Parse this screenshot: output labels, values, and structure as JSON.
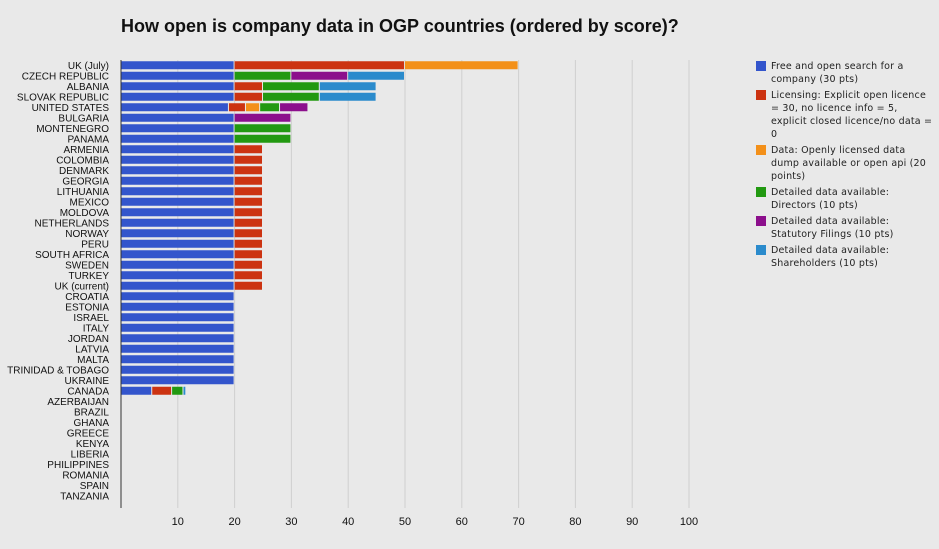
{
  "chart_data": {
    "type": "bar",
    "orientation": "horizontal",
    "stacked": true,
    "title": "How open is company data in OGP countries (ordered by score)?",
    "xlabel": "",
    "ylabel": "",
    "xlim": [
      0,
      100
    ],
    "xticks": [
      "10",
      "20",
      "30",
      "40",
      "50",
      "60",
      "70",
      "80",
      "90",
      "100"
    ],
    "grid": true,
    "legend_position": "right",
    "categories": [
      "UK (July)",
      "CZECH REPUBLIC",
      "ALBANIA",
      "SLOVAK REPUBLIC",
      "UNITED STATES",
      "BULGARIA",
      "MONTENEGRO",
      "PANAMA",
      "ARMENIA",
      "COLOMBIA",
      "DENMARK",
      "GEORGIA",
      "LITHUANIA",
      "MEXICO",
      "MOLDOVA",
      "NETHERLANDS",
      "NORWAY",
      "PERU",
      "SOUTH AFRICA",
      "SWEDEN",
      "TURKEY",
      "UK (current)",
      "CROATIA",
      "ESTONIA",
      "ISRAEL",
      "ITALY",
      "JORDAN",
      "LATVIA",
      "MALTA",
      "TRINIDAD & TOBAGO",
      "UKRAINE",
      "CANADA",
      "AZERBAIJAN",
      "BRAZIL",
      "GHANA",
      "GREECE",
      "KENYA",
      "LIBERIA",
      "PHILIPPINES",
      "ROMANIA",
      "SPAIN",
      "TANZANIA"
    ],
    "series": [
      {
        "name": "Free and open search for a company (30 pts)",
        "color": "#3355cc",
        "values": [
          20,
          20,
          20,
          20,
          19,
          20,
          20,
          20,
          20,
          20,
          20,
          20,
          20,
          20,
          20,
          20,
          20,
          20,
          20,
          20,
          20,
          20,
          20,
          20,
          20,
          20,
          20,
          20,
          20,
          20,
          20,
          5.5,
          0,
          0,
          0,
          0,
          0,
          0,
          0,
          0,
          0,
          0
        ]
      },
      {
        "name": "Licensing: Explicit open licence = 30, no licence info = 5, explicit closed licence/no data = 0",
        "color": "#cc3311",
        "values": [
          30,
          0,
          5,
          5,
          3,
          0,
          0,
          0,
          5,
          5,
          5,
          5,
          5,
          5,
          5,
          5,
          5,
          5,
          5,
          5,
          5,
          5,
          0,
          0,
          0,
          0,
          0,
          0,
          0,
          0,
          0,
          3.5,
          0,
          0,
          0,
          0,
          0,
          0,
          0,
          0,
          0,
          0
        ]
      },
      {
        "name": "Data: Openly licensed data dump available or open api (20 points)",
        "color": "#f39019",
        "values": [
          20,
          0,
          0,
          0,
          2.5,
          0,
          0,
          0,
          0,
          0,
          0,
          0,
          0,
          0,
          0,
          0,
          0,
          0,
          0,
          0,
          0,
          0,
          0,
          0,
          0,
          0,
          0,
          0,
          0,
          0,
          0,
          0,
          0,
          0,
          0,
          0,
          0,
          0,
          0,
          0,
          0,
          0
        ]
      },
      {
        "name": "Detailed data available: Directors (10 pts)",
        "color": "#229911",
        "values": [
          0,
          10,
          10,
          10,
          3.5,
          0,
          10,
          10,
          0,
          0,
          0,
          0,
          0,
          0,
          0,
          0,
          0,
          0,
          0,
          0,
          0,
          0,
          0,
          0,
          0,
          0,
          0,
          0,
          0,
          0,
          0,
          2,
          0,
          0,
          0,
          0,
          0,
          0,
          0,
          0,
          0,
          0
        ]
      },
      {
        "name": "Detailed data available: Statutory Filings (10 pts)",
        "color": "#8c0f8c",
        "values": [
          0,
          10,
          0,
          0,
          5,
          10,
          0,
          0,
          0,
          0,
          0,
          0,
          0,
          0,
          0,
          0,
          0,
          0,
          0,
          0,
          0,
          0,
          0,
          0,
          0,
          0,
          0,
          0,
          0,
          0,
          0,
          0,
          0,
          0,
          0,
          0,
          0,
          0,
          0,
          0,
          0,
          0
        ]
      },
      {
        "name": "Detailed data available: Shareholders (10 pts)",
        "color": "#2b8bcc",
        "values": [
          0,
          10,
          10,
          10,
          0,
          0,
          0,
          0,
          0,
          0,
          0,
          0,
          0,
          0,
          0,
          0,
          0,
          0,
          0,
          0,
          0,
          0,
          0,
          0,
          0,
          0,
          0,
          0,
          0,
          0,
          0,
          0.5,
          0,
          0,
          0,
          0,
          0,
          0,
          0,
          0,
          0,
          0
        ]
      }
    ]
  },
  "legend": {
    "items": [
      {
        "label": "Free and open search for a company (30 pts)",
        "color": "#3355cc"
      },
      {
        "label": "Licensing: Explicit open licence = 30, no licence info = 5, explicit closed licence/no data = 0",
        "color": "#cc3311"
      },
      {
        "label": "Data: Openly licensed data dump available or open api (20 points)",
        "color": "#f39019"
      },
      {
        "label": "Detailed data available: Directors (10 pts)",
        "color": "#229911"
      },
      {
        "label": "Detailed data available: Statutory Filings (10 pts)",
        "color": "#8c0f8c"
      },
      {
        "label": "Detailed data available: Shareholders (10 pts)",
        "color": "#2b8bcc"
      }
    ]
  }
}
